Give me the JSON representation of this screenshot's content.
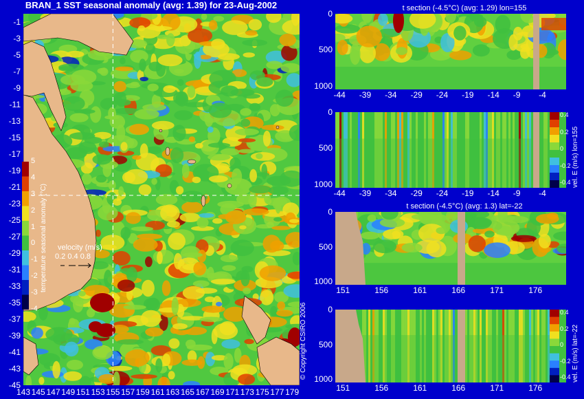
{
  "colors": {
    "background": "#0000cc",
    "land": "#e8b88a",
    "section_land": "#c8a88a",
    "guide_line": "#ffffff"
  },
  "colorscale": [
    "#00004a",
    "#0020c0",
    "#2a80ff",
    "#40c0e0",
    "#40c040",
    "#8ad83a",
    "#f0e020",
    "#f0a000",
    "#e04000",
    "#a00000"
  ],
  "map": {
    "title": "BRAN_1  SST seasonal anomaly  (avg: 1.39)  for 23-Aug-2002",
    "lat_ticks": [
      "-1",
      "-3",
      "-5",
      "-7",
      "-9",
      "-11",
      "-13",
      "-15",
      "-17",
      "-19",
      "-21",
      "-23",
      "-25",
      "-27",
      "-29",
      "-31",
      "-33",
      "-35",
      "-37",
      "-39",
      "-41",
      "-43",
      "-45"
    ],
    "lon_ticks": [
      "143",
      "145",
      "147",
      "149",
      "151",
      "153",
      "155",
      "157",
      "159",
      "161",
      "163",
      "165",
      "167",
      "169",
      "171",
      "173",
      "175",
      "177",
      "179"
    ],
    "colorbar": {
      "label": "temperature seasonal anomaly (°C)",
      "ticks": [
        "5",
        "4",
        "3",
        "2",
        "1",
        "0",
        "-1",
        "-2",
        "-3",
        "-4"
      ]
    },
    "velocity_legend": {
      "title": "velocity (m/s)",
      "values": "0.2 0.4 0.8"
    },
    "copyright": "© Copyright CSIRO 2006"
  },
  "panels": [
    {
      "title": "t section (-4.5°C) (avg: 1.29) lon=155",
      "x_ticks": [
        "-44",
        "-39",
        "-34",
        "-29",
        "-24",
        "-19",
        "-14",
        "-9",
        "-4"
      ],
      "y_ticks": [
        "0",
        "500",
        "1000"
      ],
      "colorbar": null
    },
    {
      "title": "",
      "x_ticks": [
        "-44",
        "-39",
        "-34",
        "-29",
        "-24",
        "-19",
        "-14",
        "-9",
        "-4"
      ],
      "y_ticks": [
        "0",
        "500",
        "1000"
      ],
      "colorbar": {
        "label": "vel. E (m/s) lon=155",
        "ticks": [
          "0.4",
          "0.2",
          "0",
          "-0.2",
          "-0.4"
        ]
      }
    },
    {
      "title": "t section (-4.5°C) (avg: 1.3) lat=-22",
      "x_ticks": [
        "151",
        "156",
        "161",
        "166",
        "171",
        "176"
      ],
      "y_ticks": [
        "0",
        "500",
        "1000"
      ],
      "colorbar": null
    },
    {
      "title": "",
      "x_ticks": [
        "151",
        "156",
        "161",
        "166",
        "171",
        "176"
      ],
      "y_ticks": [
        "0",
        "500",
        "1000"
      ],
      "colorbar": {
        "label": "vel. E (m/s) lat=-22",
        "ticks": [
          "0.4",
          "0.2",
          "0",
          "-0.2",
          "-0.4"
        ]
      }
    }
  ],
  "chart_data": [
    {
      "type": "heatmap",
      "title": "BRAN_1  SST seasonal anomaly  (avg: 1.39)  for 23-Aug-2002",
      "x_range": [
        143,
        180
      ],
      "y_range": [
        -45,
        0
      ],
      "x_ticks": [
        143,
        145,
        147,
        149,
        151,
        153,
        155,
        157,
        159,
        161,
        163,
        165,
        167,
        169,
        171,
        173,
        175,
        177,
        179
      ],
      "y_ticks": [
        -1,
        -3,
        -5,
        -7,
        -9,
        -11,
        -13,
        -15,
        -17,
        -19,
        -21,
        -23,
        -25,
        -27,
        -29,
        -31,
        -33,
        -35,
        -37,
        -39,
        -41,
        -43,
        -45
      ],
      "colorbar_range": [
        -4,
        5
      ],
      "avg": 1.39
    },
    {
      "type": "heatmap",
      "title": "t section (-4.5°C) (avg: 1.29) lon=155",
      "x_range": [
        -45,
        0
      ],
      "y_range": [
        0,
        1050
      ],
      "avg": 1.29
    },
    {
      "type": "heatmap",
      "x_range": [
        -45,
        0
      ],
      "y_range": [
        0,
        1050
      ],
      "colorbar_range": [
        -0.4,
        0.4
      ]
    },
    {
      "type": "heatmap",
      "title": "t section (-4.5°C) (avg: 1.3) lat=-22",
      "x_range": [
        150,
        180
      ],
      "y_range": [
        0,
        1050
      ],
      "avg": 1.3
    },
    {
      "type": "heatmap",
      "x_range": [
        150,
        180
      ],
      "y_range": [
        0,
        1050
      ],
      "colorbar_range": [
        -0.4,
        0.4
      ]
    }
  ]
}
